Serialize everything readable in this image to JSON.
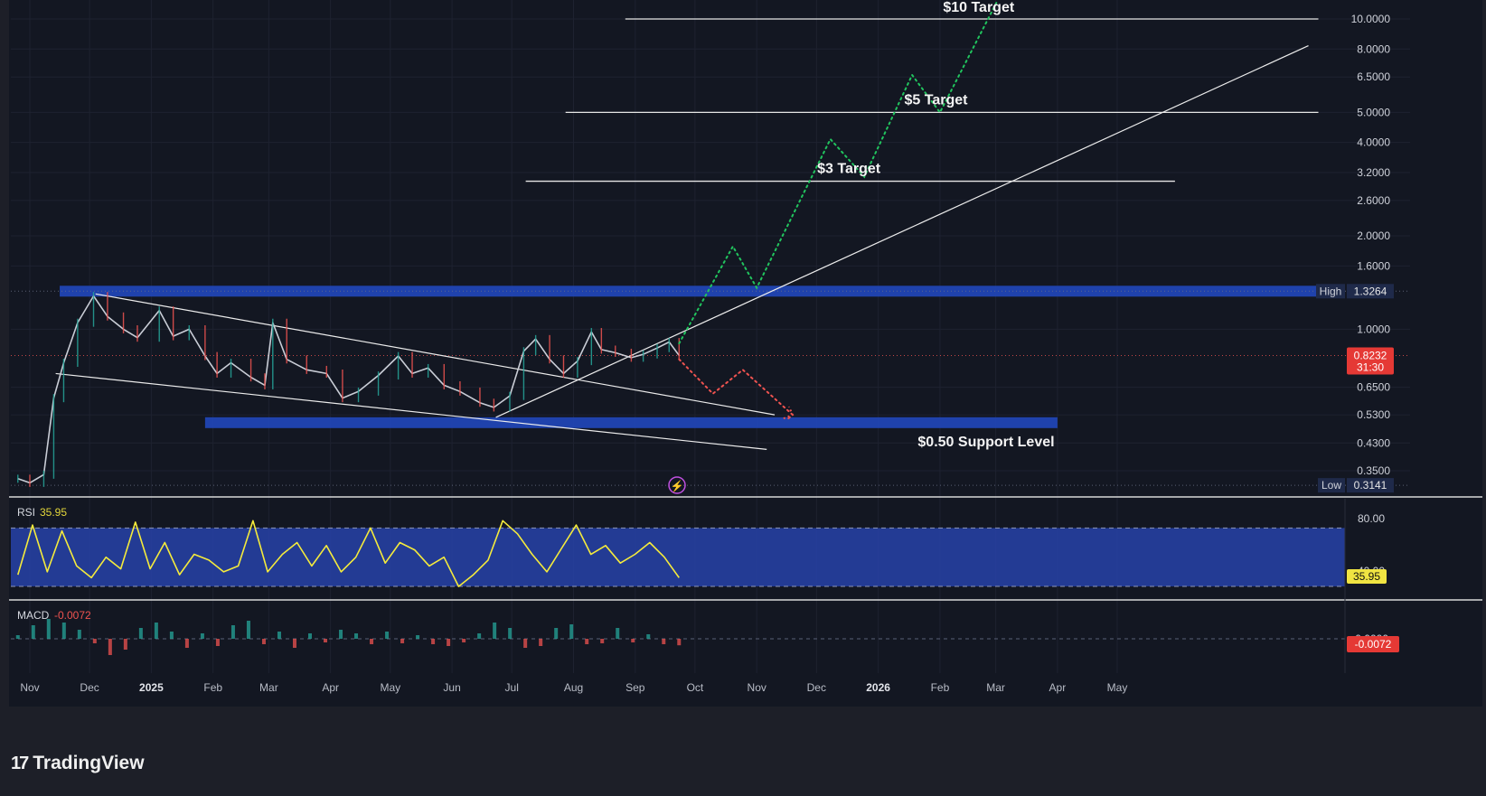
{
  "chart_data": {
    "type": "line",
    "y_scale": "log",
    "price_ticks": [
      "10.0000",
      "8.0000",
      "6.5000",
      "5.0000",
      "4.0000",
      "3.2000",
      "2.6000",
      "2.0000",
      "1.6000",
      "1.0000",
      "0.6500",
      "0.5300",
      "0.4300",
      "0.3500"
    ],
    "x_ticks": [
      "Nov",
      "Dec",
      "2025",
      "Feb",
      "Mar",
      "Apr",
      "May",
      "Jun",
      "Jul",
      "Aug",
      "Sep",
      "Oct",
      "Nov",
      "Dec",
      "2026",
      "Feb",
      "Mar",
      "Apr",
      "May"
    ],
    "x_tick_dates": [
      "2024-11-01",
      "2024-12-01",
      "2025-01-01",
      "2025-02-01",
      "2025-03-01",
      "2025-04-01",
      "2025-05-01",
      "2025-06-01",
      "2025-07-01",
      "2025-08-01",
      "2025-09-01",
      "2025-10-01",
      "2025-11-01",
      "2025-12-01",
      "2026-01-01",
      "2026-02-01",
      "2026-03-01",
      "2026-04-01",
      "2026-05-01"
    ],
    "price_series": {
      "dates": [
        "2024-10-26",
        "2024-11-01",
        "2024-11-08",
        "2024-11-13",
        "2024-11-18",
        "2024-11-25",
        "2024-12-03",
        "2024-12-10",
        "2024-12-18",
        "2024-12-25",
        "2025-01-05",
        "2025-01-12",
        "2025-01-20",
        "2025-01-28",
        "2025-02-03",
        "2025-02-10",
        "2025-02-20",
        "2025-02-27",
        "2025-03-03",
        "2025-03-10",
        "2025-03-20",
        "2025-03-30",
        "2025-04-07",
        "2025-04-15",
        "2025-04-25",
        "2025-05-05",
        "2025-05-12",
        "2025-05-20",
        "2025-05-28",
        "2025-06-05",
        "2025-06-15",
        "2025-06-22",
        "2025-06-30",
        "2025-07-07",
        "2025-07-13",
        "2025-07-20",
        "2025-07-27",
        "2025-08-03",
        "2025-08-10",
        "2025-08-15",
        "2025-08-22",
        "2025-08-30",
        "2025-09-05",
        "2025-09-12",
        "2025-09-18",
        "2025-09-23"
      ],
      "close": [
        0.33,
        0.32,
        0.34,
        0.6,
        0.78,
        1.05,
        1.28,
        1.1,
        1.0,
        0.94,
        1.15,
        0.95,
        1.0,
        0.82,
        0.72,
        0.78,
        0.7,
        0.66,
        1.05,
        0.8,
        0.74,
        0.72,
        0.6,
        0.63,
        0.71,
        0.82,
        0.72,
        0.75,
        0.66,
        0.63,
        0.58,
        0.56,
        0.61,
        0.85,
        0.93,
        0.8,
        0.72,
        0.79,
        0.98,
        0.86,
        0.84,
        0.81,
        0.83,
        0.87,
        0.91,
        0.8232
      ]
    },
    "bullish_projection": {
      "dates": [
        "2025-09-23",
        "2025-10-20",
        "2025-11-01",
        "2025-12-08",
        "2025-12-25",
        "2026-01-18",
        "2026-02-01",
        "2026-03-02"
      ],
      "values": [
        0.9,
        1.85,
        1.36,
        4.1,
        3.1,
        6.6,
        5.0,
        11.5
      ]
    },
    "bearish_projection": {
      "dates": [
        "2025-09-23",
        "2025-10-10",
        "2025-10-25",
        "2025-11-19",
        "2025-11-16"
      ],
      "values": [
        0.8,
        0.62,
        0.74,
        0.53,
        0.51
      ]
    },
    "target_lines": [
      {
        "label": "$10 Target",
        "price": 10.0,
        "from": "2025-08-27",
        "to": "2026-08-10"
      },
      {
        "label": "$5 Target",
        "price": 5.0,
        "from": "2025-07-28",
        "to": "2026-08-10"
      },
      {
        "label": "$3 Target",
        "price": 3.0,
        "from": "2025-07-08",
        "to": "2026-05-30"
      }
    ],
    "zones": [
      {
        "name": "high",
        "price": 1.3264,
        "from": "2024-11-16",
        "to": "2026-08-10"
      },
      {
        "name": "support",
        "price": 0.5,
        "from": "2025-01-28",
        "to": "2026-04-01"
      }
    ],
    "support_label": "$0.50 Support Level",
    "trendlines": [
      {
        "name": "wedge-upper",
        "from": [
          "2024-12-04",
          1.3
        ],
        "to": [
          "2025-11-10",
          0.53
        ]
      },
      {
        "name": "wedge-lower",
        "from": [
          "2024-11-14",
          0.72
        ],
        "to": [
          "2025-11-06",
          0.41
        ]
      },
      {
        "name": "ascending",
        "from": [
          "2025-06-23",
          0.52
        ],
        "to": [
          "2026-08-05",
          8.2
        ]
      }
    ],
    "price_labels": {
      "high": {
        "label": "High",
        "value": "1.3264"
      },
      "low": {
        "label": "Low",
        "value": "0.3141"
      },
      "current": {
        "value": "0.8232",
        "countdown": "31:30"
      }
    },
    "rsi": {
      "label": "RSI",
      "value": "35.95",
      "levels": [
        70,
        30
      ],
      "tick_labels": [
        "80.00",
        "40.00"
      ],
      "values": [
        38,
        72,
        40,
        68,
        44,
        36,
        50,
        42,
        74,
        42,
        60,
        38,
        52,
        48,
        40,
        44,
        75,
        40,
        52,
        60,
        44,
        58,
        40,
        50,
        70,
        46,
        60,
        55,
        44,
        50,
        30,
        38,
        48,
        75,
        66,
        52,
        40,
        56,
        72,
        52,
        58,
        46,
        52,
        60,
        50,
        35.95
      ]
    },
    "macd": {
      "label": "MACD",
      "value": "-0.0072",
      "zero_label": "0.0000",
      "histogram": [
        0.004,
        0.015,
        0.022,
        0.018,
        0.01,
        -0.005,
        -0.018,
        -0.012,
        0.012,
        0.018,
        0.008,
        -0.01,
        0.006,
        -0.008,
        0.015,
        0.02,
        -0.006,
        0.008,
        -0.01,
        0.006,
        -0.004,
        0.01,
        0.006,
        -0.006,
        0.008,
        -0.005,
        0.004,
        -0.006,
        -0.008,
        -0.004,
        0.006,
        0.018,
        0.012,
        -0.01,
        -0.008,
        0.012,
        0.016,
        -0.006,
        -0.005,
        0.012,
        -0.004,
        0.005,
        -0.006,
        -0.0072
      ]
    }
  },
  "brand": {
    "name": "TradingView",
    "mark": "17"
  },
  "colors": {
    "background": "#131722",
    "frame": "#1d1f28",
    "zone": "#2147b8",
    "bull": "#21c45e",
    "bear": "#ef5350",
    "rsi_line": "#f5eb3c",
    "rsi_band": "#2742a8"
  }
}
